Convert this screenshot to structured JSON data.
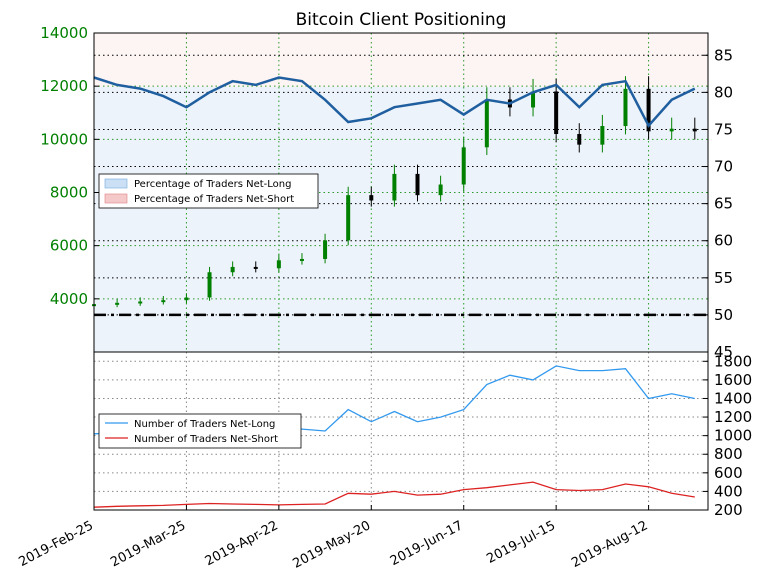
{
  "chart_data": [
    {
      "type": "line",
      "title": "Bitcoin Client Positioning",
      "ylim_left": [
        2000,
        14000
      ],
      "left_ticks": [
        4000,
        6000,
        8000,
        10000,
        12000,
        14000
      ],
      "left_tick_labels": [
        "4000",
        "6000",
        "8000",
        "10000",
        "12000",
        "14000"
      ],
      "ylim_right": [
        45,
        88
      ],
      "right_ticks": [
        45,
        50,
        55,
        60,
        65,
        70,
        75,
        80,
        85
      ],
      "right_tick_labels": [
        "45",
        "50",
        "55",
        "60",
        "65",
        "70",
        "75",
        "80",
        "85"
      ],
      "x_dates": [
        "2019-02-25",
        "2019-03-25",
        "2019-04-22",
        "2019-05-20",
        "2019-06-17",
        "2019-07-15",
        "2019-08-12"
      ],
      "x_tick_labels": [
        "2019-Feb-25",
        "2019-Mar-25",
        "2019-Apr-22",
        "2019-May-20",
        "2019-Jun-17",
        "2019-Jul-15",
        "2019-Aug-12"
      ],
      "grid": true,
      "threshold_line": 50,
      "legend": {
        "placement": "center-left",
        "entries": [
          "Percentage of Traders Net-Long",
          "Percentage of Traders Net-Short"
        ]
      },
      "series_colors": {
        "net_long_pct": "#1f5fa0",
        "price_up": "#008000",
        "price_down": "#000000",
        "long_fill": "#cce0f5",
        "short_fill": "#f5c9c9"
      },
      "price_series": {
        "name": "Price",
        "x": [
          "2019-02-25",
          "2019-03-04",
          "2019-03-11",
          "2019-03-18",
          "2019-03-25",
          "2019-04-01",
          "2019-04-08",
          "2019-04-15",
          "2019-04-22",
          "2019-04-29",
          "2019-05-06",
          "2019-05-13",
          "2019-05-20",
          "2019-05-27",
          "2019-06-03",
          "2019-06-10",
          "2019-06-17",
          "2019-06-24",
          "2019-07-01",
          "2019-07-08",
          "2019-07-15",
          "2019-07-22",
          "2019-07-29",
          "2019-08-05",
          "2019-08-12",
          "2019-08-19",
          "2019-08-26"
        ],
        "values": [
          3800,
          3850,
          3900,
          3950,
          4050,
          5000,
          5200,
          5150,
          5450,
          5500,
          6200,
          7900,
          7700,
          8700,
          7900,
          8300,
          9700,
          11500,
          11200,
          11800,
          10200,
          9800,
          10500,
          11900,
          10300,
          10400,
          10300
        ]
      },
      "net_long_pct_series": {
        "name": "Percentage of Traders Net-Long",
        "x": [
          "2019-02-25",
          "2019-03-04",
          "2019-03-11",
          "2019-03-18",
          "2019-03-25",
          "2019-04-01",
          "2019-04-08",
          "2019-04-15",
          "2019-04-22",
          "2019-04-29",
          "2019-05-06",
          "2019-05-13",
          "2019-05-20",
          "2019-05-27",
          "2019-06-03",
          "2019-06-10",
          "2019-06-17",
          "2019-06-24",
          "2019-07-01",
          "2019-07-08",
          "2019-07-15",
          "2019-07-22",
          "2019-07-29",
          "2019-08-05",
          "2019-08-12",
          "2019-08-19",
          "2019-08-26"
        ],
        "values": [
          82,
          81,
          80.5,
          79.5,
          78,
          80,
          81.5,
          81,
          82,
          81.5,
          79,
          76,
          76.5,
          78,
          78.5,
          79,
          77,
          79,
          78.5,
          80,
          81,
          78,
          81,
          81.5,
          75.5,
          79,
          80.5
        ]
      }
    },
    {
      "type": "line",
      "ylim": [
        200,
        1900
      ],
      "right_ticks": [
        200,
        400,
        600,
        800,
        1000,
        1200,
        1400,
        1600,
        1800
      ],
      "right_tick_labels": [
        "200",
        "400",
        "600",
        "800",
        "1000",
        "1200",
        "1400",
        "1600",
        "1800"
      ],
      "grid": true,
      "legend": {
        "placement": "center-left",
        "entries": [
          "Number of Traders Net-Long",
          "Number of Traders Net-Short"
        ]
      },
      "series": [
        {
          "name": "Number of Traders Net-Long",
          "color": "#3399ee",
          "x": [
            "2019-02-25",
            "2019-03-04",
            "2019-03-11",
            "2019-03-18",
            "2019-03-25",
            "2019-04-01",
            "2019-04-08",
            "2019-04-15",
            "2019-04-22",
            "2019-04-29",
            "2019-05-06",
            "2019-05-13",
            "2019-05-20",
            "2019-05-27",
            "2019-06-03",
            "2019-06-10",
            "2019-06-17",
            "2019-06-24",
            "2019-07-01",
            "2019-07-08",
            "2019-07-15",
            "2019-07-22",
            "2019-07-29",
            "2019-08-05",
            "2019-08-12",
            "2019-08-19",
            "2019-08-26"
          ],
          "values": [
            1020,
            1030,
            1060,
            1070,
            1080,
            1150,
            1120,
            1130,
            1090,
            1070,
            1050,
            1280,
            1150,
            1260,
            1150,
            1200,
            1280,
            1550,
            1650,
            1600,
            1750,
            1700,
            1700,
            1720,
            1400,
            1450,
            1400
          ]
        },
        {
          "name": "Number of Traders Net-Short",
          "color": "#dd2222",
          "x": [
            "2019-02-25",
            "2019-03-04",
            "2019-03-11",
            "2019-03-18",
            "2019-03-25",
            "2019-04-01",
            "2019-04-08",
            "2019-04-15",
            "2019-04-22",
            "2019-04-29",
            "2019-05-06",
            "2019-05-13",
            "2019-05-20",
            "2019-05-27",
            "2019-06-03",
            "2019-06-10",
            "2019-06-17",
            "2019-06-24",
            "2019-07-01",
            "2019-07-08",
            "2019-07-15",
            "2019-07-22",
            "2019-07-29",
            "2019-08-05",
            "2019-08-12",
            "2019-08-19",
            "2019-08-26"
          ],
          "values": [
            230,
            240,
            245,
            250,
            260,
            270,
            265,
            260,
            255,
            260,
            265,
            380,
            370,
            400,
            360,
            370,
            420,
            440,
            470,
            500,
            420,
            410,
            420,
            480,
            450,
            380,
            340
          ]
        }
      ]
    }
  ]
}
